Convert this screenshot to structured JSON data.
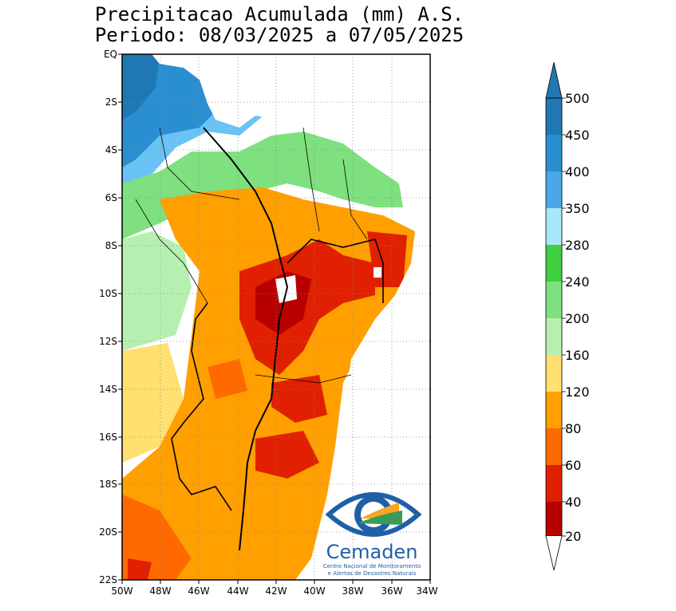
{
  "title": {
    "line1": "Precipitacao Acumulada (mm) A.S.",
    "line2": "Periodo: 08/03/2025 a 07/05/2025"
  },
  "map": {
    "lat_labels": [
      "EQ",
      "2S",
      "4S",
      "6S",
      "8S",
      "10S",
      "12S",
      "14S",
      "16S",
      "18S",
      "20S",
      "22S"
    ],
    "lon_labels": [
      "50W",
      "48W",
      "46W",
      "44W",
      "42W",
      "40W",
      "38W",
      "36W",
      "34W"
    ],
    "lat_range": [
      0,
      -22
    ],
    "lon_range": [
      -50,
      -34
    ],
    "grid": "dotted"
  },
  "colorbar": {
    "labels": [
      "500",
      "450",
      "400",
      "350",
      "280",
      "240",
      "200",
      "160",
      "120",
      "80",
      "60",
      "40",
      "20"
    ],
    "colors": [
      "#1f78b4",
      "#2a8fd0",
      "#4aa8e8",
      "#6ac2f5",
      "#a8e6fa",
      "#3fcf3f",
      "#7ee07e",
      "#b6f0b0",
      "#ffffc0",
      "#ffe070",
      "#ffa000",
      "#ff6a00",
      "#e02000",
      "#b80000"
    ]
  },
  "logo": {
    "name": "Cemaden",
    "subtitle1": "Centro Nacional de Monitoramento",
    "subtitle2": "e Alertas de Desastres Naturais"
  }
}
